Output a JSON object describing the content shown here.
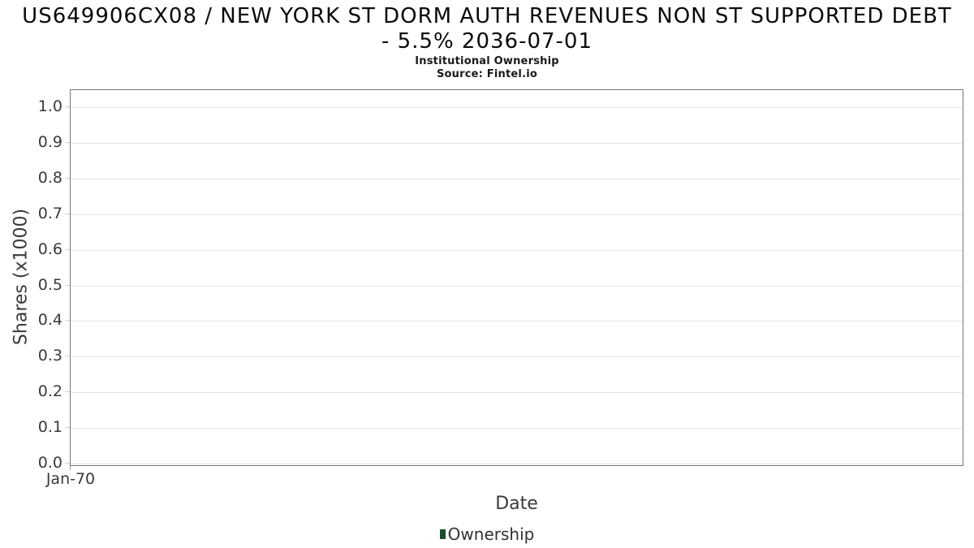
{
  "chart_data": {
    "type": "line",
    "title": "US649906CX08 / NEW YORK ST DORM AUTH REVENUES NON ST SUPPORTED DEBT\n- 5.5% 2036-07-01",
    "subtitle": "Institutional Ownership",
    "source": "Source: Fintel.io",
    "xlabel": "Date",
    "ylabel": "Shares (x1000)",
    "x": [],
    "series": [
      {
        "name": "Ownership",
        "color": "#1d4f2d",
        "values": []
      }
    ],
    "xticks": [
      "Jan-70"
    ],
    "yticks": [
      {
        "value": 0.0,
        "label": "0.0"
      },
      {
        "value": 0.1,
        "label": "0.1"
      },
      {
        "value": 0.2,
        "label": "0.2"
      },
      {
        "value": 0.3,
        "label": "0.3"
      },
      {
        "value": 0.4,
        "label": "0.4"
      },
      {
        "value": 0.5,
        "label": "0.5"
      },
      {
        "value": 0.6,
        "label": "0.6"
      },
      {
        "value": 0.7,
        "label": "0.7"
      },
      {
        "value": 0.8,
        "label": "0.8"
      },
      {
        "value": 0.9,
        "label": "0.9"
      },
      {
        "value": 1.0,
        "label": "1.0"
      }
    ],
    "ylim": [
      0.0,
      1.05
    ],
    "grid": true,
    "legend_position": "bottom",
    "colors": {
      "plot_border": "#767676",
      "gridline": "#e4e4e4",
      "tick": "#cfcfcf",
      "axis_text": "#3a3a3a",
      "title_text": "#0a0a0a",
      "legend_green": "#1d4f2d"
    }
  }
}
